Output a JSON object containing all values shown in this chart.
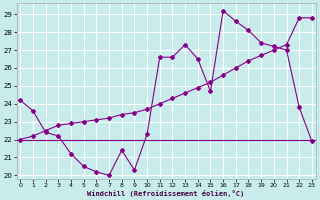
{
  "xlabel": "Windchill (Refroidissement éolien,°C)",
  "bg_color": "#c8ecec",
  "line_color": "#880088",
  "grid_color": "#ffffff",
  "ylim": [
    19.8,
    29.6
  ],
  "xlim": [
    -0.3,
    23.3
  ],
  "yticks": [
    20,
    21,
    22,
    23,
    24,
    25,
    26,
    27,
    28,
    29
  ],
  "xticks": [
    0,
    1,
    2,
    3,
    4,
    5,
    6,
    7,
    8,
    9,
    10,
    11,
    12,
    13,
    14,
    15,
    16,
    17,
    18,
    19,
    20,
    21,
    22,
    23
  ],
  "series1_x": [
    0,
    1,
    2,
    3,
    4,
    5,
    6,
    7,
    8,
    9,
    10,
    11,
    12,
    13,
    14,
    15,
    16,
    17,
    18,
    19,
    20,
    21,
    22,
    23
  ],
  "series1_y": [
    24.2,
    23.6,
    22.4,
    22.2,
    21.2,
    20.5,
    20.2,
    20.0,
    21.4,
    20.3,
    22.3,
    26.6,
    26.6,
    27.3,
    26.5,
    24.7,
    29.2,
    28.6,
    28.1,
    27.4,
    27.2,
    27.0,
    23.8,
    21.9
  ],
  "series2_x": [
    0,
    1,
    2,
    3,
    4,
    5,
    6,
    7,
    8,
    9,
    10,
    11,
    12,
    13,
    14,
    15,
    16,
    17,
    18,
    19,
    20,
    21,
    22,
    23
  ],
  "series2_y": [
    22.0,
    22.2,
    22.5,
    22.8,
    22.9,
    23.0,
    23.1,
    23.2,
    23.4,
    23.5,
    23.7,
    24.0,
    24.3,
    24.6,
    24.9,
    25.2,
    25.6,
    26.0,
    26.4,
    26.7,
    27.0,
    27.3,
    28.8,
    28.8
  ],
  "series3_y": 22.0
}
